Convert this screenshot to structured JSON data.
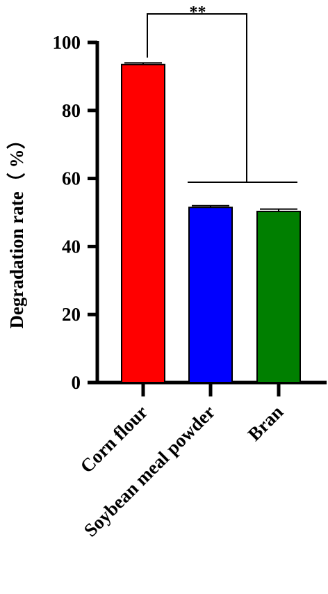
{
  "chart_data": {
    "type": "bar",
    "categories": [
      "Corn flour",
      "Soybean meal powder",
      "Bran"
    ],
    "values": [
      93.5,
      51.5,
      50.3
    ],
    "errors": [
      0.5,
      0.5,
      0.7
    ],
    "colors": [
      "#ff0000",
      "#0000ff",
      "#007f00"
    ],
    "ylabel": "Degradation rate（ %）",
    "xlabel": "",
    "ylim": [
      0,
      100
    ],
    "yticks": [
      0,
      20,
      40,
      60,
      80,
      100
    ],
    "grid": false,
    "annotation": {
      "text": "**",
      "compare": "Corn flour vs Soybean meal powder, Bran"
    }
  }
}
